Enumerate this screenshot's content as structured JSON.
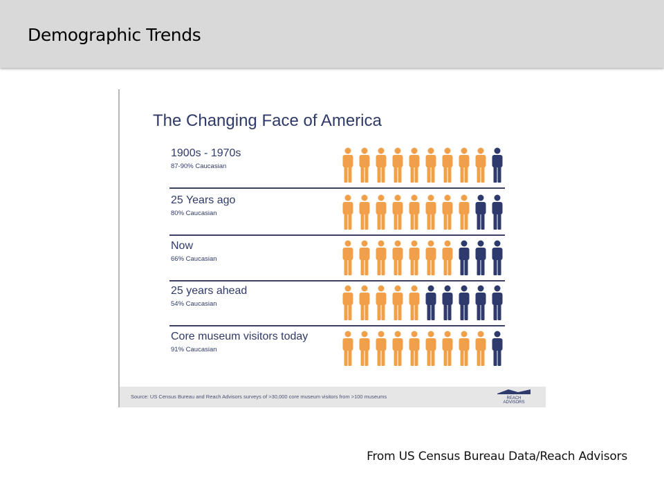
{
  "slide": {
    "title": "Demographic Trends",
    "attribution": "From US Census Bureau Data/Reach Advisors"
  },
  "chart_data": {
    "type": "bar",
    "title": "The Changing Face of America",
    "unit": "% Caucasian",
    "icon": "person-icon",
    "icons_per_row": 10,
    "colors": {
      "caucasian": "#f0a04b",
      "other": "#2e3a6b"
    },
    "rows": [
      {
        "label": "1900s - 1970s",
        "sub": "87-90% Caucasian",
        "value": 90
      },
      {
        "label": "25 Years ago",
        "sub": "80% Caucasian",
        "value": 80
      },
      {
        "label": "Now",
        "sub": "66% Caucasian",
        "value": 66
      },
      {
        "label": "25 years ahead",
        "sub": "54% Caucasian",
        "value": 54
      },
      {
        "label": "Core museum visitors today",
        "sub": "91% Caucasian",
        "value": 91
      }
    ],
    "source": "Source: US Census Bureau and Reach Advisors surveys of >30,000 core museum visitors from >100 museums",
    "logo_text": [
      "REACH",
      "ADVISORS"
    ]
  }
}
